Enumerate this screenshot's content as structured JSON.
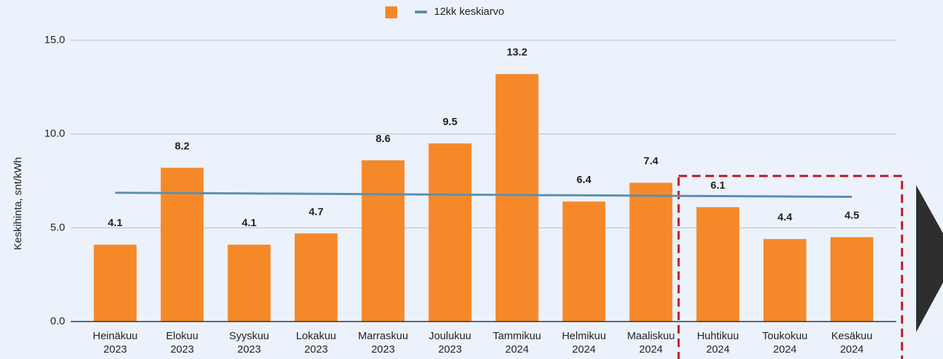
{
  "chart_data": {
    "type": "bar",
    "y_label": "Keskihinta, snt/kWh",
    "categories": [
      "Heinäkuu 2023",
      "Elokuu 2023",
      "Syyskuu 2023",
      "Lokakuu 2023",
      "Marraskuu 2023",
      "Joulukuu 2023",
      "Tammikuu 2024",
      "Helmikuu 2024",
      "Maaliskuu 2024",
      "Huhtikuu 2024",
      "Toukokuu 2024",
      "Kesäkuu 2024"
    ],
    "series": [
      {
        "type": "bar",
        "color": "#f5892a",
        "values": [
          4.1,
          8.2,
          4.1,
          4.7,
          8.6,
          9.5,
          13.2,
          6.4,
          7.4,
          6.1,
          4.4,
          4.5
        ]
      },
      {
        "type": "line",
        "name": "12kk keskiarvo",
        "color": "#5b8fae",
        "values": [
          6.87,
          6.85,
          6.83,
          6.81,
          6.79,
          6.77,
          6.75,
          6.73,
          6.71,
          6.69,
          6.67,
          6.65
        ]
      }
    ],
    "ylim": [
      0,
      15
    ],
    "yticks": [
      {
        "value": 0,
        "label": "0.0"
      },
      {
        "value": 5,
        "label": "5.0"
      },
      {
        "value": 10,
        "label": "10.0"
      },
      {
        "value": 15,
        "label": "15.0"
      }
    ],
    "grid": true,
    "legend": "top"
  }
}
